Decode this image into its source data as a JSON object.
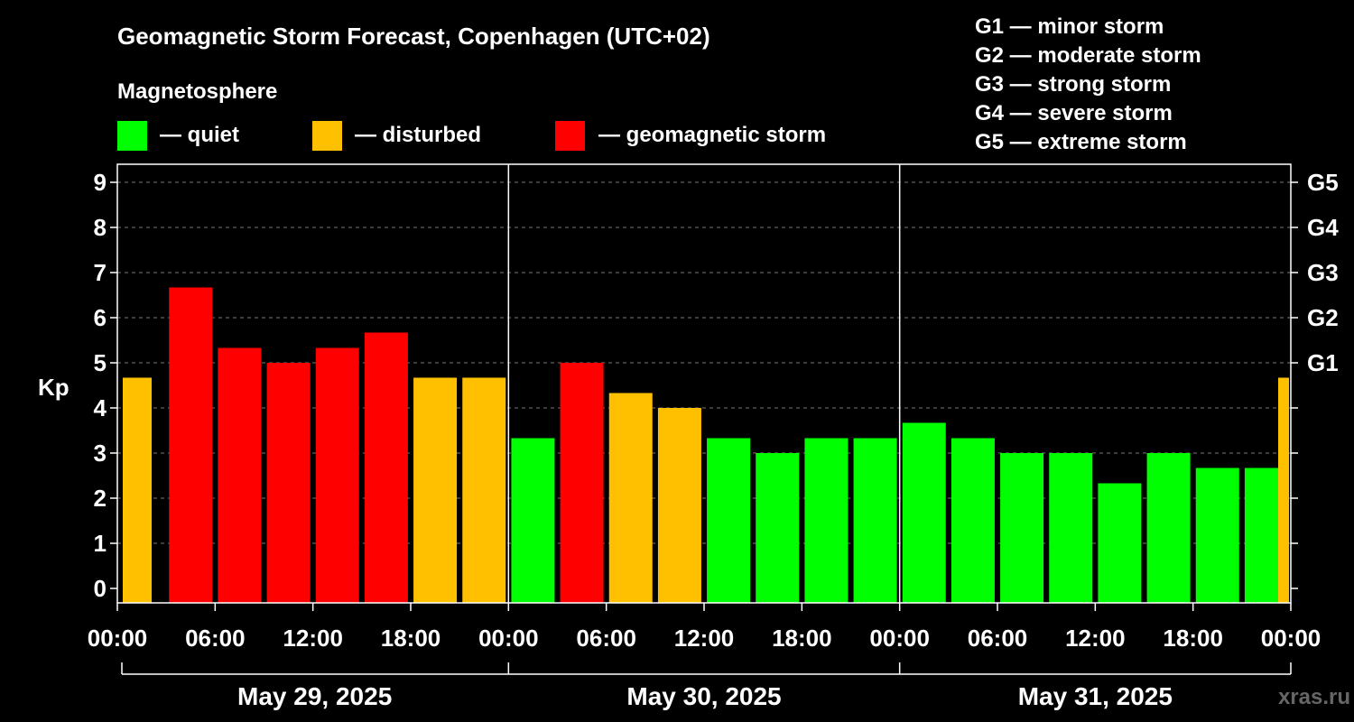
{
  "chart_data": {
    "type": "bar",
    "title": "Geomagnetic Storm Forecast, Copenhagen (UTC+02)",
    "ylabel": "Kp",
    "ylim": [
      0,
      9
    ],
    "yticks": [
      "0",
      "1",
      "2",
      "3",
      "4",
      "5",
      "6",
      "7",
      "8",
      "9"
    ],
    "right_ticks": [
      {
        "kp": 5,
        "label": "G1"
      },
      {
        "kp": 6,
        "label": "G2"
      },
      {
        "kp": 7,
        "label": "G3"
      },
      {
        "kp": 8,
        "label": "G4"
      },
      {
        "kp": 9,
        "label": "G5"
      }
    ],
    "x_tick_labels": [
      "00:00",
      "06:00",
      "12:00",
      "18:00",
      "00:00",
      "06:00",
      "12:00",
      "18:00",
      "00:00",
      "06:00",
      "12:00",
      "18:00",
      "00:00"
    ],
    "days": [
      "May 29, 2025",
      "May 30, 2025",
      "May 31, 2025"
    ],
    "values": [
      4.67,
      6.67,
      5.33,
      5.0,
      5.33,
      5.67,
      4.67,
      4.67,
      3.33,
      5.0,
      4.33,
      4.0,
      3.33,
      3.0,
      3.33,
      3.33,
      3.67,
      3.33,
      3.0,
      3.0,
      2.33,
      3.0,
      2.67,
      2.67,
      4.67
    ],
    "magnetosphere_title": "Magnetosphere",
    "legend": [
      {
        "label": "— quiet",
        "color": "#00ff00"
      },
      {
        "label": "— disturbed",
        "color": "#ffc000"
      },
      {
        "label": "— geomagnetic storm",
        "color": "#ff0000"
      }
    ],
    "storm_levels": [
      "G1 — minor storm",
      "G2 — moderate storm",
      "G3 — strong storm",
      "G4 — severe storm",
      "G5 — extreme storm"
    ],
    "grid": true
  },
  "watermark": "xras.ru"
}
